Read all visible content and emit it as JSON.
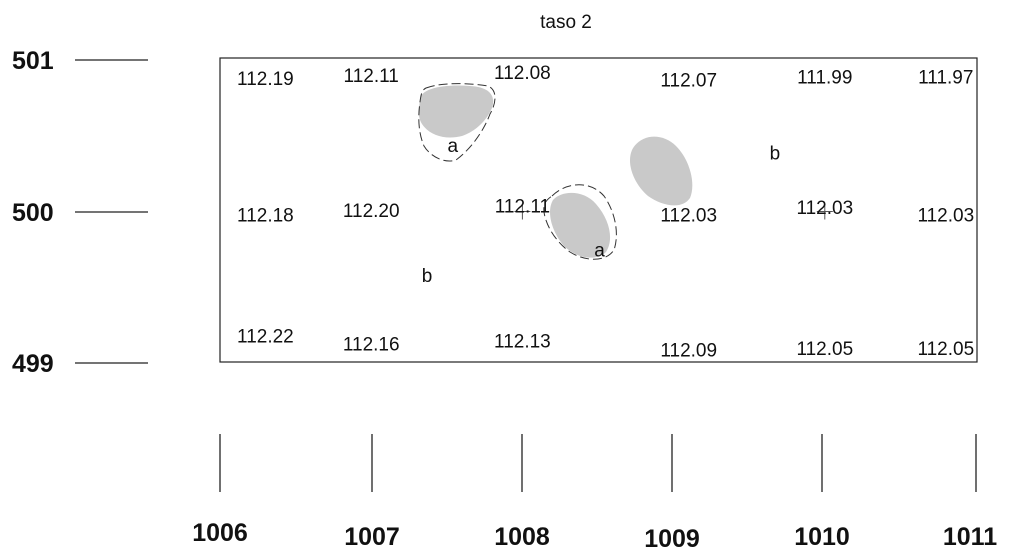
{
  "title": "taso 2",
  "y_axis": [
    "501",
    "500",
    "499"
  ],
  "x_axis": [
    "1006",
    "1007",
    "1008",
    "1009",
    "1010",
    "1011"
  ],
  "elevations": [
    {
      "value": "112.19",
      "x": 1006.3,
      "y": 500.88
    },
    {
      "value": "112.11",
      "x": 1007.0,
      "y": 500.9
    },
    {
      "value": "112.08",
      "x": 1008.0,
      "y": 500.92
    },
    {
      "value": "112.07",
      "x": 1009.1,
      "y": 500.87
    },
    {
      "value": "111.99",
      "x": 1010.0,
      "y": 500.89
    },
    {
      "value": "111.97",
      "x": 1010.8,
      "y": 500.89
    },
    {
      "value": "112.18",
      "x": 1006.3,
      "y": 499.98
    },
    {
      "value": "112.20",
      "x": 1007.0,
      "y": 500.01
    },
    {
      "value": "112.11",
      "x": 1008.0,
      "y": 500.04
    },
    {
      "value": "112.03",
      "x": 1009.1,
      "y": 499.98
    },
    {
      "value": "112.03",
      "x": 1010.0,
      "y": 500.03
    },
    {
      "value": "112.03",
      "x": 1010.8,
      "y": 499.98
    },
    {
      "value": "112.22",
      "x": 1006.3,
      "y": 499.18
    },
    {
      "value": "112.16",
      "x": 1007.0,
      "y": 499.13
    },
    {
      "value": "112.13",
      "x": 1008.0,
      "y": 499.15
    },
    {
      "value": "112.09",
      "x": 1009.1,
      "y": 499.09
    },
    {
      "value": "112.05",
      "x": 1010.0,
      "y": 499.1
    },
    {
      "value": "112.05",
      "x": 1010.8,
      "y": 499.1
    }
  ],
  "zone_labels": [
    {
      "label": "a",
      "x": 1007.54,
      "y": 500.44
    },
    {
      "label": "a",
      "x": 1008.51,
      "y": 499.75
    },
    {
      "label": "b",
      "x": 1009.67,
      "y": 500.39
    },
    {
      "label": "b",
      "x": 1007.37,
      "y": 499.58
    }
  ],
  "markers": [
    {
      "x": 1008.0,
      "y": 500.0
    },
    {
      "x": 1010.0,
      "y": 500.0
    }
  ]
}
